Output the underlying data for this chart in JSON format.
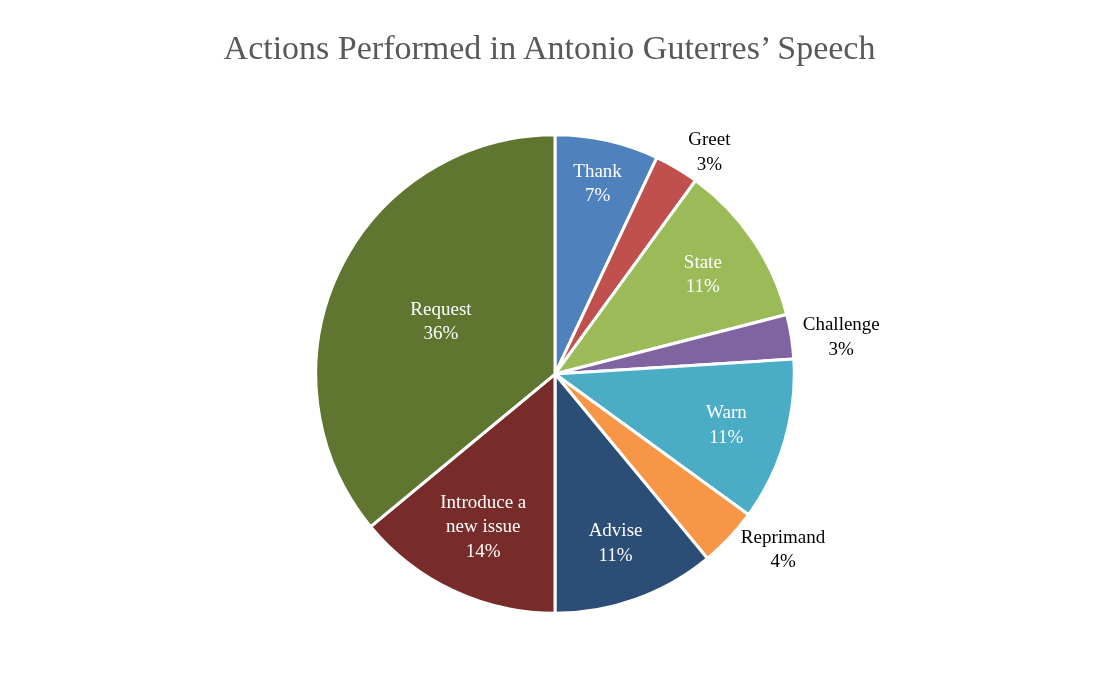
{
  "chart_data": {
    "type": "pie",
    "title": "Actions Performed in Antonio Guterres’ Speech",
    "categories": [
      "Thank",
      "Greet",
      "State",
      "Challenge",
      "Warn",
      "Reprimand",
      "Advise",
      "Introduce a new issue",
      "Request"
    ],
    "values": [
      7,
      3,
      11,
      3,
      11,
      4,
      11,
      14,
      36
    ],
    "value_labels": [
      "7%",
      "3%",
      "11%",
      "3%",
      "11%",
      "4%",
      "11%",
      "14%",
      "36%"
    ],
    "colors": [
      "#4f81bd",
      "#c0504d",
      "#9bbb59",
      "#8064a2",
      "#4bacc6",
      "#f79646",
      "#2c4d75",
      "#772c2a",
      "#5f7530"
    ],
    "legend": false
  }
}
